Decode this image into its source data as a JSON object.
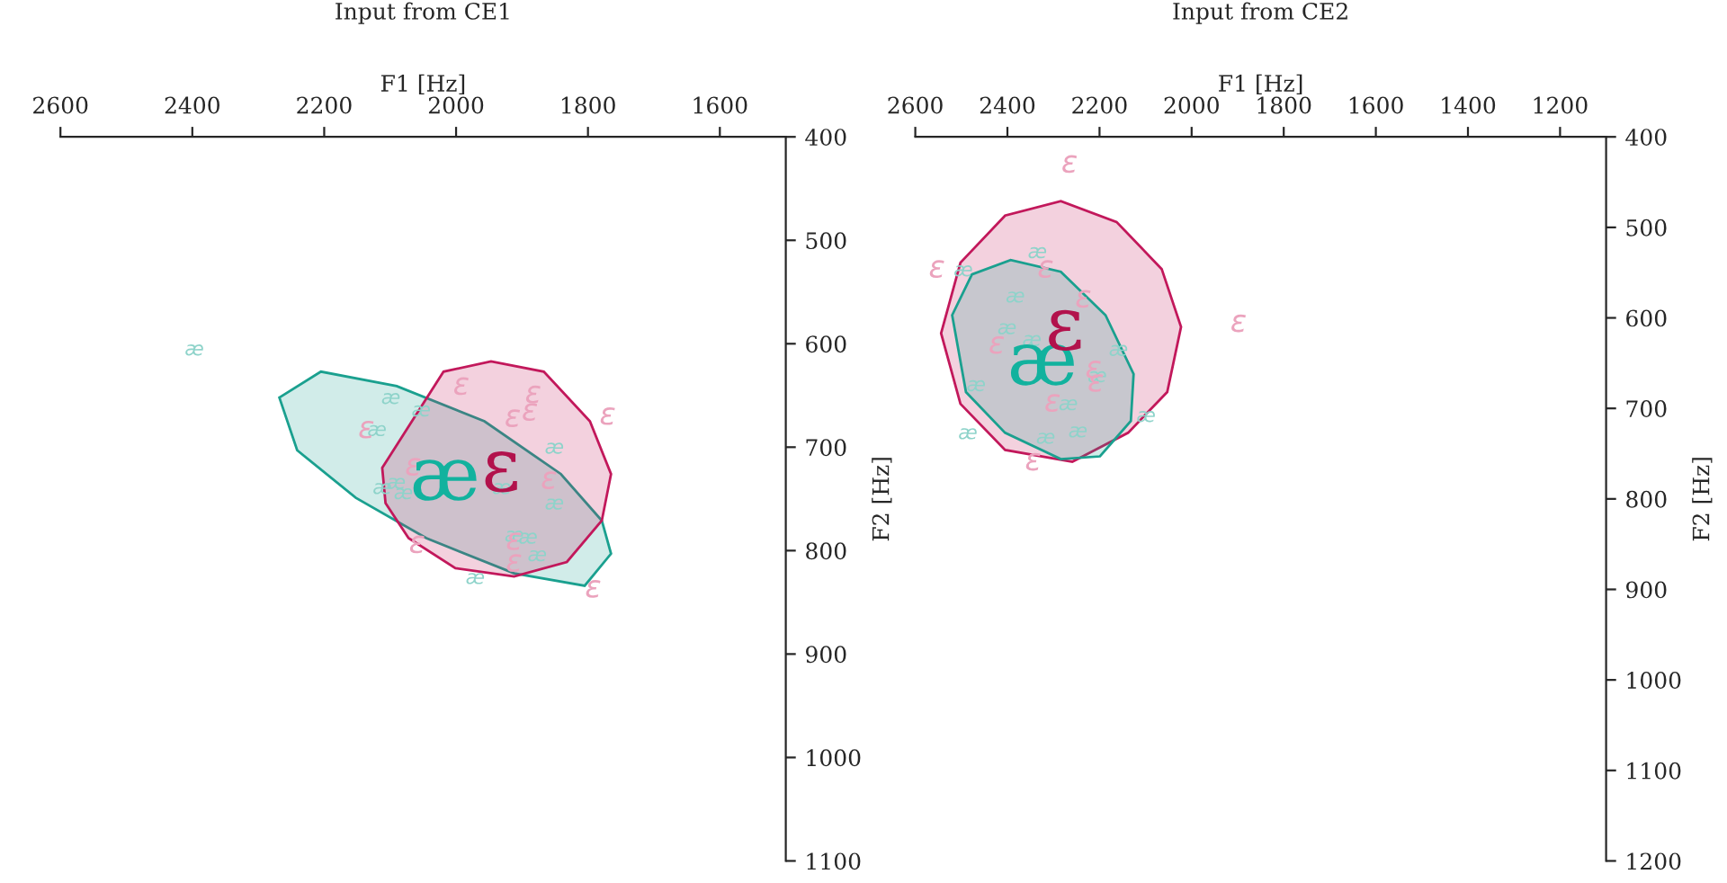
{
  "chart_data": [
    {
      "type": "scatter",
      "title": "Input from CE1",
      "xlabel": "F1 [Hz]",
      "ylabel": "F2 [Hz]",
      "xlim": [
        2600,
        1500
      ],
      "xticks": [
        2600,
        2400,
        2200,
        2000,
        1800,
        1600
      ],
      "ylim": [
        1100,
        400
      ],
      "yticks": [
        400,
        500,
        600,
        700,
        800,
        900,
        1000,
        1100
      ],
      "series": [
        {
          "type": "area",
          "color": "#1aa08f",
          "x": [
            2268,
            2205,
            2090,
            1957,
            1841,
            1779,
            1765,
            1805,
            1912,
            2045,
            2152,
            2241
          ],
          "values": [
            652,
            627,
            641,
            675,
            726,
            771,
            803,
            834,
            822,
            788,
            749,
            703
          ]
        },
        {
          "type": "area",
          "color": "#c2185b",
          "x": [
            2112,
            2019,
            1947,
            1867,
            1797,
            1765,
            1779,
            1832,
            1912,
            2001,
            2072,
            2107
          ],
          "values": [
            720,
            627,
            617,
            627,
            675,
            726,
            771,
            811,
            825,
            817,
            788,
            754
          ]
        },
        {
          "name": "æ",
          "color": "#8ed3ca",
          "x": [
            2397,
            2099,
            2053,
            2120,
            2112,
            2091,
            2080,
            1851,
            1851,
            1912,
            1891,
            1877,
            1971,
            1931
          ],
          "values": [
            606,
            653,
            665,
            684,
            740,
            735,
            745,
            701,
            755,
            786,
            788,
            805,
            827,
            740
          ]
        },
        {
          "name": "ɛ",
          "color": "#eba3bd",
          "x": [
            1992,
            1883,
            1888,
            1914,
            1770,
            2136,
            2065,
            1859,
            2059,
            1912,
            1912,
            1792
          ],
          "values": [
            641,
            649,
            666,
            672,
            670,
            683,
            719,
            732,
            794,
            791,
            812,
            837
          ]
        }
      ]
    },
    {
      "type": "scatter",
      "title": "Input from CE2",
      "xlabel": "F1 [Hz]",
      "ylabel": "F2 [Hz]",
      "xlim": [
        2600,
        1100
      ],
      "xticks": [
        2600,
        2400,
        2200,
        2000,
        1800,
        1600,
        1400,
        1200
      ],
      "ylim": [
        1200,
        400
      ],
      "yticks": [
        400,
        500,
        600,
        700,
        800,
        900,
        1000,
        1100,
        1200
      ],
      "series": [
        {
          "type": "area",
          "color": "#c2185b",
          "x": [
            2544,
            2502,
            2405,
            2284,
            2163,
            2065,
            2023,
            2053,
            2138,
            2259,
            2405,
            2502
          ],
          "values": [
            617,
            539,
            487,
            471,
            494,
            546,
            610,
            682,
            727,
            759,
            746,
            695
          ]
        },
        {
          "type": "area",
          "color": "#1aa08f",
          "x": [
            2520,
            2477,
            2393,
            2284,
            2187,
            2126,
            2132,
            2199,
            2284,
            2405,
            2490
          ],
          "values": [
            597,
            552,
            536,
            549,
            597,
            662,
            714,
            753,
            756,
            727,
            682
          ]
        },
        {
          "name": "æ",
          "color": "#8ed3ca",
          "x": [
            2335,
            2496,
            2383,
            2401,
            2347,
            2159,
            2468,
            2205,
            2268,
            2099,
            2486,
            2317,
            2247
          ],
          "values": [
            528,
            548,
            577,
            612,
            625,
            636,
            675,
            665,
            696,
            709,
            728,
            733,
            726
          ]
        },
        {
          "name": "ɛ",
          "color": "#eba3bd",
          "x": [
            2265,
            2553,
            2317,
            2235,
            2423,
            1898,
            2213,
            2208,
            2302,
            2344
          ],
          "values": [
            430,
            546,
            546,
            579,
            630,
            606,
            657,
            672,
            694,
            759
          ]
        }
      ]
    }
  ]
}
